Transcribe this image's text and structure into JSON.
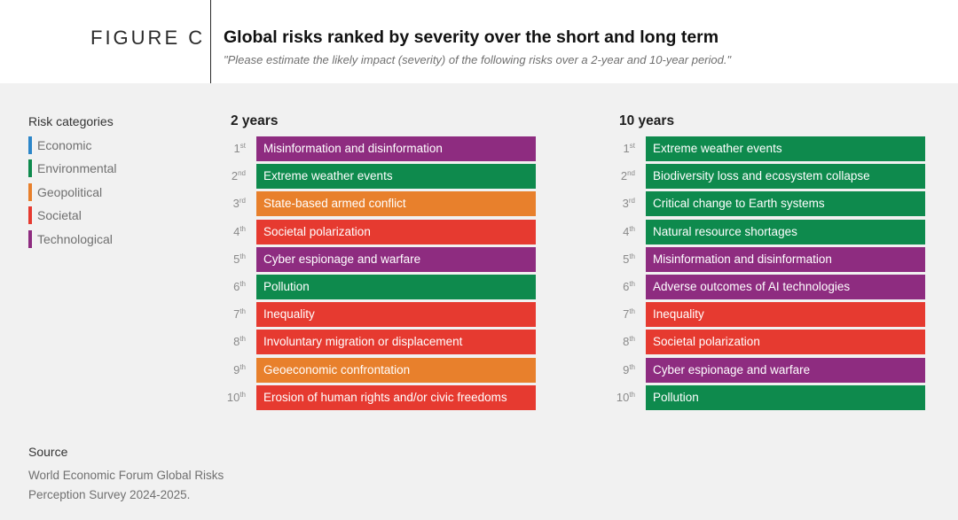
{
  "header": {
    "figure_label": "FIGURE C",
    "title": "Global risks ranked by severity over the short and long term",
    "subtitle": "\"Please estimate the likely impact (severity) of the following risks over a 2-year and 10-year period.\""
  },
  "legend": {
    "title": "Risk categories",
    "items": [
      {
        "label": "Economic",
        "color": "#2c86c9"
      },
      {
        "label": "Environmental",
        "color": "#0e8a4d"
      },
      {
        "label": "Geopolitical",
        "color": "#e8802c"
      },
      {
        "label": "Societal",
        "color": "#e63a30"
      },
      {
        "label": "Technological",
        "color": "#8e2c80"
      }
    ]
  },
  "colors": {
    "Economic": "#2c86c9",
    "Environmental": "#0e8a4d",
    "Geopolitical": "#e8802c",
    "Societal": "#e63a30",
    "Technological": "#8e2c80"
  },
  "chart_data": [
    {
      "type": "table",
      "title": "2 years",
      "rows": [
        {
          "rank": "1",
          "suffix": "st",
          "risk": "Misinformation and disinformation",
          "category": "Technological"
        },
        {
          "rank": "2",
          "suffix": "nd",
          "risk": "Extreme weather events",
          "category": "Environmental"
        },
        {
          "rank": "3",
          "suffix": "rd",
          "risk": "State-based armed conflict",
          "category": "Geopolitical"
        },
        {
          "rank": "4",
          "suffix": "th",
          "risk": "Societal polarization",
          "category": "Societal"
        },
        {
          "rank": "5",
          "suffix": "th",
          "risk": "Cyber espionage and warfare",
          "category": "Technological"
        },
        {
          "rank": "6",
          "suffix": "th",
          "risk": "Pollution",
          "category": "Environmental"
        },
        {
          "rank": "7",
          "suffix": "th",
          "risk": "Inequality",
          "category": "Societal"
        },
        {
          "rank": "8",
          "suffix": "th",
          "risk": "Involuntary migration or displacement",
          "category": "Societal"
        },
        {
          "rank": "9",
          "suffix": "th",
          "risk": "Geoeconomic confrontation",
          "category": "Geopolitical"
        },
        {
          "rank": "10",
          "suffix": "th",
          "risk": "Erosion of human rights and/or civic freedoms",
          "category": "Societal"
        }
      ]
    },
    {
      "type": "table",
      "title": "10 years",
      "rows": [
        {
          "rank": "1",
          "suffix": "st",
          "risk": "Extreme weather events",
          "category": "Environmental"
        },
        {
          "rank": "2",
          "suffix": "nd",
          "risk": "Biodiversity loss and ecosystem collapse",
          "category": "Environmental"
        },
        {
          "rank": "3",
          "suffix": "rd",
          "risk": "Critical change to Earth systems",
          "category": "Environmental"
        },
        {
          "rank": "4",
          "suffix": "th",
          "risk": "Natural resource shortages",
          "category": "Environmental"
        },
        {
          "rank": "5",
          "suffix": "th",
          "risk": "Misinformation and disinformation",
          "category": "Technological"
        },
        {
          "rank": "6",
          "suffix": "th",
          "risk": "Adverse outcomes of AI technologies",
          "category": "Technological"
        },
        {
          "rank": "7",
          "suffix": "th",
          "risk": "Inequality",
          "category": "Societal"
        },
        {
          "rank": "8",
          "suffix": "th",
          "risk": "Societal polarization",
          "category": "Societal"
        },
        {
          "rank": "9",
          "suffix": "th",
          "risk": "Cyber espionage and warfare",
          "category": "Technological"
        },
        {
          "rank": "10",
          "suffix": "th",
          "risk": "Pollution",
          "category": "Environmental"
        }
      ]
    }
  ],
  "source": {
    "title": "Source",
    "text": "World Economic Forum Global Risks\nPerception Survey 2024-2025."
  }
}
